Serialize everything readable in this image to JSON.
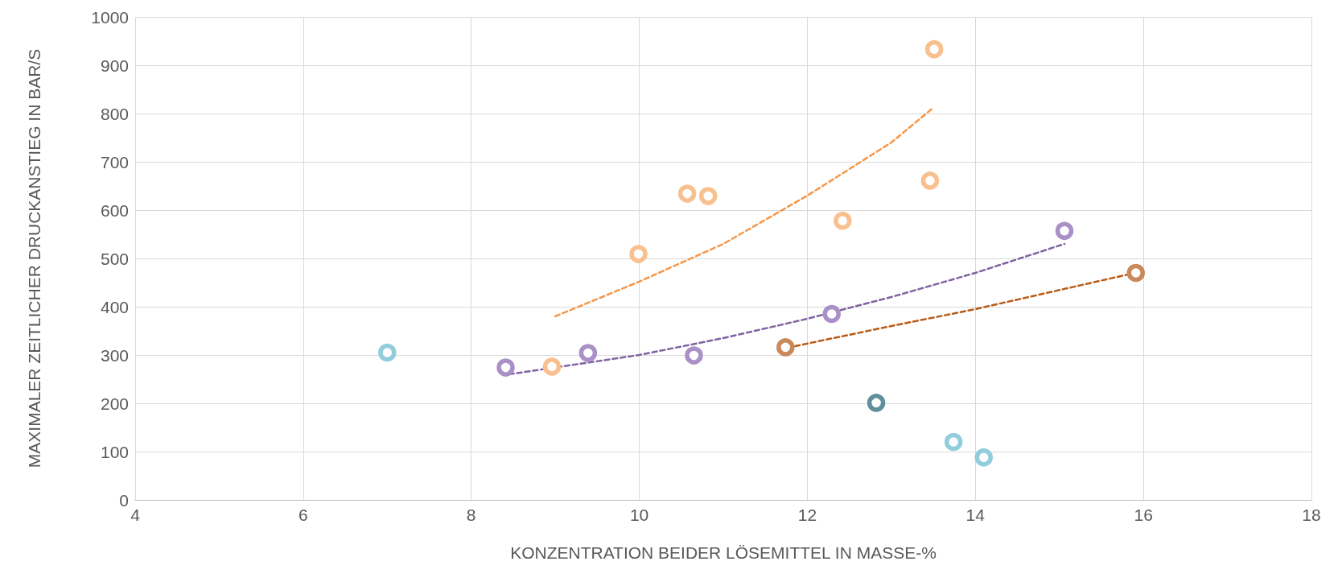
{
  "chart_data": {
    "type": "scatter",
    "xlabel": "KONZENTRATION BEIDER LÖSEMITTEL IN MASSE-%",
    "ylabel": "MAXIMALER ZEITLICHER DRUCKANSTIEG IN BAR/S",
    "xlim": [
      4,
      18
    ],
    "xticks": [
      4,
      6,
      8,
      10,
      12,
      14,
      16,
      18
    ],
    "ylim": [
      0,
      1000
    ],
    "yticks": [
      0,
      100,
      200,
      300,
      400,
      500,
      600,
      700,
      800,
      900,
      1000
    ],
    "grid": true,
    "marker": "circle",
    "series": [
      {
        "color": "#92cddc",
        "x": [
          7.0,
          13.74,
          14.1
        ],
        "values": [
          305,
          120,
          88
        ]
      },
      {
        "color": "#5f8f9b",
        "x": [
          12.82
        ],
        "values": [
          201
        ]
      },
      {
        "color": "#f9c08f",
        "x": [
          8.96,
          9.99,
          10.57,
          10.82,
          12.42,
          13.46,
          13.51
        ],
        "values": [
          276,
          509,
          634,
          629,
          578,
          661,
          933
        ]
      },
      {
        "color": "#a991c8",
        "x": [
          8.41,
          9.39,
          10.65,
          12.29,
          15.06
        ],
        "values": [
          274,
          304,
          299,
          385,
          557
        ]
      },
      {
        "color": "#c9895a",
        "x": [
          11.74,
          15.91
        ],
        "values": [
          316,
          470
        ]
      },
      {
        "type": "line",
        "line_style": "dashed",
        "marker": "none",
        "color": "#f79646",
        "x": [
          9,
          10,
          11,
          12,
          13,
          13.5
        ],
        "values": [
          380,
          452,
          530,
          630,
          740,
          812
        ]
      },
      {
        "type": "line",
        "line_style": "dashed",
        "marker": "none",
        "color": "#8064a2",
        "x": [
          8.45,
          10,
          11,
          12,
          13,
          14,
          15.06
        ],
        "values": [
          260,
          300,
          335,
          375,
          420,
          470,
          530
        ]
      },
      {
        "type": "line",
        "line_style": "dashed",
        "marker": "none",
        "color": "#b85c17",
        "x": [
          11.76,
          13,
          14,
          15.9
        ],
        "values": [
          315,
          360,
          395,
          470
        ]
      }
    ]
  }
}
